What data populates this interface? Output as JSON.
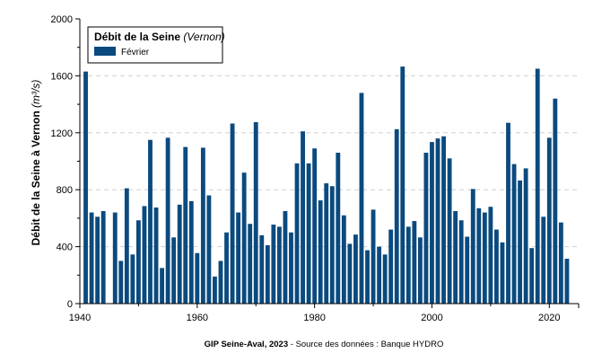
{
  "colors": {
    "bar": "#0b4a7e",
    "grid": "#cfcfcf",
    "axis": "#000000"
  },
  "chart_data": {
    "type": "bar",
    "title": "",
    "legend": {
      "title": "Débit de la Seine",
      "title_note": "(Vernon)",
      "entries": [
        "Février"
      ],
      "position": "top-left"
    },
    "ylabel": "Débit de la Seine à Vernon",
    "ylabel_unit": "(m³/s)",
    "xlabel": "",
    "ylim": [
      0,
      2000
    ],
    "xlim": [
      1940,
      2025
    ],
    "y_ticks": [
      0,
      400,
      800,
      1200,
      1600,
      2000
    ],
    "x_ticks": [
      1940,
      1960,
      1980,
      2000,
      2020
    ],
    "grid": "horizontal dashed",
    "series": [
      {
        "name": "Février",
        "x": [
          1941,
          1942,
          1943,
          1944,
          1946,
          1947,
          1948,
          1949,
          1950,
          1951,
          1952,
          1953,
          1954,
          1955,
          1956,
          1957,
          1958,
          1959,
          1960,
          1961,
          1962,
          1963,
          1964,
          1965,
          1966,
          1967,
          1968,
          1969,
          1970,
          1971,
          1972,
          1973,
          1974,
          1975,
          1976,
          1977,
          1978,
          1979,
          1980,
          1981,
          1982,
          1983,
          1984,
          1985,
          1986,
          1987,
          1988,
          1989,
          1990,
          1991,
          1992,
          1993,
          1994,
          1995,
          1996,
          1997,
          1998,
          1999,
          2000,
          2001,
          2002,
          2003,
          2004,
          2005,
          2006,
          2007,
          2008,
          2009,
          2010,
          2011,
          2012,
          2013,
          2014,
          2015,
          2016,
          2017,
          2018,
          2019,
          2020,
          2021,
          2022,
          2023
        ],
        "values": [
          1630,
          640,
          610,
          650,
          640,
          300,
          810,
          345,
          585,
          685,
          1150,
          675,
          250,
          1165,
          465,
          695,
          1100,
          720,
          355,
          1095,
          760,
          190,
          300,
          500,
          1265,
          640,
          920,
          560,
          1275,
          480,
          410,
          555,
          540,
          650,
          500,
          985,
          1210,
          985,
          1090,
          725,
          845,
          825,
          1060,
          620,
          420,
          485,
          1480,
          375,
          660,
          400,
          345,
          520,
          1225,
          1665,
          540,
          580,
          465,
          1060,
          1135,
          1160,
          1175,
          1020,
          650,
          585,
          470,
          805,
          670,
          640,
          680,
          520,
          430,
          1270,
          980,
          865,
          950,
          390,
          1650,
          610,
          1165,
          1440,
          570,
          315
        ]
      }
    ],
    "source_bold": "GIP Seine-Aval, 2023",
    "source_rest": " - Source des données : Banque HYDRO"
  }
}
